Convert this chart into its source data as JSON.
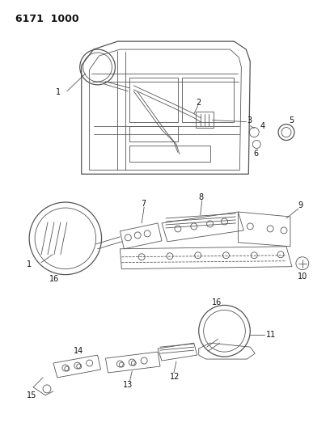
{
  "title": "6171  1000",
  "bg_color": "#ffffff",
  "line_color": "#555555",
  "label_color": "#111111",
  "fig_width": 4.08,
  "fig_height": 5.33,
  "dpi": 100
}
